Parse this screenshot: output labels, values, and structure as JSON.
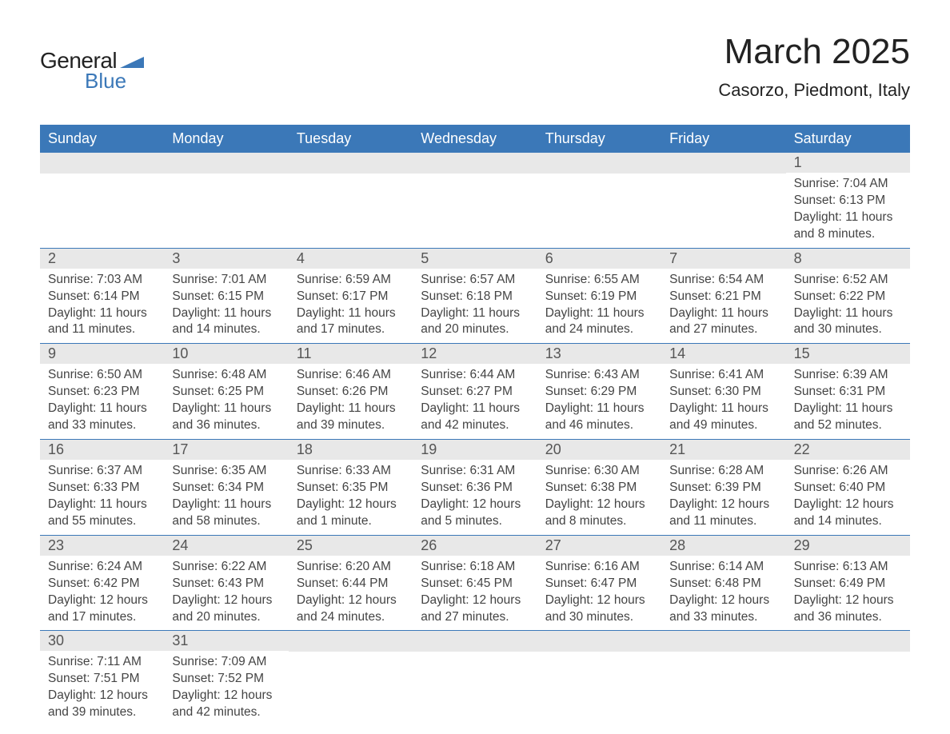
{
  "logo": {
    "general": "General",
    "blue": "Blue",
    "triangle_color": "#3b78b8"
  },
  "title": "March 2025",
  "location": "Casorzo, Piedmont, Italy",
  "colors": {
    "header_bg": "#3b78b8",
    "header_text": "#ffffff",
    "daynum_bg": "#e8e8e8",
    "row_border": "#3b78b8",
    "body_text": "#444444",
    "title_text": "#222222"
  },
  "weekdays": [
    "Sunday",
    "Monday",
    "Tuesday",
    "Wednesday",
    "Thursday",
    "Friday",
    "Saturday"
  ],
  "weeks": [
    [
      {
        "day": null
      },
      {
        "day": null
      },
      {
        "day": null
      },
      {
        "day": null
      },
      {
        "day": null
      },
      {
        "day": null
      },
      {
        "day": "1",
        "sunrise": "Sunrise: 7:04 AM",
        "sunset": "Sunset: 6:13 PM",
        "daylight1": "Daylight: 11 hours",
        "daylight2": "and 8 minutes."
      }
    ],
    [
      {
        "day": "2",
        "sunrise": "Sunrise: 7:03 AM",
        "sunset": "Sunset: 6:14 PM",
        "daylight1": "Daylight: 11 hours",
        "daylight2": "and 11 minutes."
      },
      {
        "day": "3",
        "sunrise": "Sunrise: 7:01 AM",
        "sunset": "Sunset: 6:15 PM",
        "daylight1": "Daylight: 11 hours",
        "daylight2": "and 14 minutes."
      },
      {
        "day": "4",
        "sunrise": "Sunrise: 6:59 AM",
        "sunset": "Sunset: 6:17 PM",
        "daylight1": "Daylight: 11 hours",
        "daylight2": "and 17 minutes."
      },
      {
        "day": "5",
        "sunrise": "Sunrise: 6:57 AM",
        "sunset": "Sunset: 6:18 PM",
        "daylight1": "Daylight: 11 hours",
        "daylight2": "and 20 minutes."
      },
      {
        "day": "6",
        "sunrise": "Sunrise: 6:55 AM",
        "sunset": "Sunset: 6:19 PM",
        "daylight1": "Daylight: 11 hours",
        "daylight2": "and 24 minutes."
      },
      {
        "day": "7",
        "sunrise": "Sunrise: 6:54 AM",
        "sunset": "Sunset: 6:21 PM",
        "daylight1": "Daylight: 11 hours",
        "daylight2": "and 27 minutes."
      },
      {
        "day": "8",
        "sunrise": "Sunrise: 6:52 AM",
        "sunset": "Sunset: 6:22 PM",
        "daylight1": "Daylight: 11 hours",
        "daylight2": "and 30 minutes."
      }
    ],
    [
      {
        "day": "9",
        "sunrise": "Sunrise: 6:50 AM",
        "sunset": "Sunset: 6:23 PM",
        "daylight1": "Daylight: 11 hours",
        "daylight2": "and 33 minutes."
      },
      {
        "day": "10",
        "sunrise": "Sunrise: 6:48 AM",
        "sunset": "Sunset: 6:25 PM",
        "daylight1": "Daylight: 11 hours",
        "daylight2": "and 36 minutes."
      },
      {
        "day": "11",
        "sunrise": "Sunrise: 6:46 AM",
        "sunset": "Sunset: 6:26 PM",
        "daylight1": "Daylight: 11 hours",
        "daylight2": "and 39 minutes."
      },
      {
        "day": "12",
        "sunrise": "Sunrise: 6:44 AM",
        "sunset": "Sunset: 6:27 PM",
        "daylight1": "Daylight: 11 hours",
        "daylight2": "and 42 minutes."
      },
      {
        "day": "13",
        "sunrise": "Sunrise: 6:43 AM",
        "sunset": "Sunset: 6:29 PM",
        "daylight1": "Daylight: 11 hours",
        "daylight2": "and 46 minutes."
      },
      {
        "day": "14",
        "sunrise": "Sunrise: 6:41 AM",
        "sunset": "Sunset: 6:30 PM",
        "daylight1": "Daylight: 11 hours",
        "daylight2": "and 49 minutes."
      },
      {
        "day": "15",
        "sunrise": "Sunrise: 6:39 AM",
        "sunset": "Sunset: 6:31 PM",
        "daylight1": "Daylight: 11 hours",
        "daylight2": "and 52 minutes."
      }
    ],
    [
      {
        "day": "16",
        "sunrise": "Sunrise: 6:37 AM",
        "sunset": "Sunset: 6:33 PM",
        "daylight1": "Daylight: 11 hours",
        "daylight2": "and 55 minutes."
      },
      {
        "day": "17",
        "sunrise": "Sunrise: 6:35 AM",
        "sunset": "Sunset: 6:34 PM",
        "daylight1": "Daylight: 11 hours",
        "daylight2": "and 58 minutes."
      },
      {
        "day": "18",
        "sunrise": "Sunrise: 6:33 AM",
        "sunset": "Sunset: 6:35 PM",
        "daylight1": "Daylight: 12 hours",
        "daylight2": "and 1 minute."
      },
      {
        "day": "19",
        "sunrise": "Sunrise: 6:31 AM",
        "sunset": "Sunset: 6:36 PM",
        "daylight1": "Daylight: 12 hours",
        "daylight2": "and 5 minutes."
      },
      {
        "day": "20",
        "sunrise": "Sunrise: 6:30 AM",
        "sunset": "Sunset: 6:38 PM",
        "daylight1": "Daylight: 12 hours",
        "daylight2": "and 8 minutes."
      },
      {
        "day": "21",
        "sunrise": "Sunrise: 6:28 AM",
        "sunset": "Sunset: 6:39 PM",
        "daylight1": "Daylight: 12 hours",
        "daylight2": "and 11 minutes."
      },
      {
        "day": "22",
        "sunrise": "Sunrise: 6:26 AM",
        "sunset": "Sunset: 6:40 PM",
        "daylight1": "Daylight: 12 hours",
        "daylight2": "and 14 minutes."
      }
    ],
    [
      {
        "day": "23",
        "sunrise": "Sunrise: 6:24 AM",
        "sunset": "Sunset: 6:42 PM",
        "daylight1": "Daylight: 12 hours",
        "daylight2": "and 17 minutes."
      },
      {
        "day": "24",
        "sunrise": "Sunrise: 6:22 AM",
        "sunset": "Sunset: 6:43 PM",
        "daylight1": "Daylight: 12 hours",
        "daylight2": "and 20 minutes."
      },
      {
        "day": "25",
        "sunrise": "Sunrise: 6:20 AM",
        "sunset": "Sunset: 6:44 PM",
        "daylight1": "Daylight: 12 hours",
        "daylight2": "and 24 minutes."
      },
      {
        "day": "26",
        "sunrise": "Sunrise: 6:18 AM",
        "sunset": "Sunset: 6:45 PM",
        "daylight1": "Daylight: 12 hours",
        "daylight2": "and 27 minutes."
      },
      {
        "day": "27",
        "sunrise": "Sunrise: 6:16 AM",
        "sunset": "Sunset: 6:47 PM",
        "daylight1": "Daylight: 12 hours",
        "daylight2": "and 30 minutes."
      },
      {
        "day": "28",
        "sunrise": "Sunrise: 6:14 AM",
        "sunset": "Sunset: 6:48 PM",
        "daylight1": "Daylight: 12 hours",
        "daylight2": "and 33 minutes."
      },
      {
        "day": "29",
        "sunrise": "Sunrise: 6:13 AM",
        "sunset": "Sunset: 6:49 PM",
        "daylight1": "Daylight: 12 hours",
        "daylight2": "and 36 minutes."
      }
    ],
    [
      {
        "day": "30",
        "sunrise": "Sunrise: 7:11 AM",
        "sunset": "Sunset: 7:51 PM",
        "daylight1": "Daylight: 12 hours",
        "daylight2": "and 39 minutes."
      },
      {
        "day": "31",
        "sunrise": "Sunrise: 7:09 AM",
        "sunset": "Sunset: 7:52 PM",
        "daylight1": "Daylight: 12 hours",
        "daylight2": "and 42 minutes."
      },
      {
        "day": null
      },
      {
        "day": null
      },
      {
        "day": null
      },
      {
        "day": null
      },
      {
        "day": null
      }
    ]
  ]
}
